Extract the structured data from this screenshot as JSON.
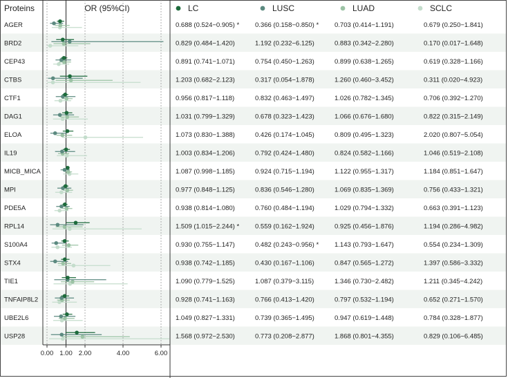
{
  "chart_data": {
    "type": "forest",
    "headers": {
      "proteins": "Proteins",
      "or_ci": "OR (95%CI)"
    },
    "series": [
      {
        "name": "LC",
        "color": "#1e6b3c"
      },
      {
        "name": "LUSC",
        "color": "#5c8a80"
      },
      {
        "name": "LUAD",
        "color": "#9cc3a5"
      },
      {
        "name": "SCLC",
        "color": "#c4ddcc"
      }
    ],
    "xaxis": {
      "ticks": [
        0,
        1,
        2,
        4,
        6
      ],
      "tick_labels": [
        "0.00",
        "1.00",
        "2.00",
        "4.00",
        "6.00"
      ],
      "range": [
        0,
        6.3
      ]
    },
    "rows": [
      {
        "protein": "AGER",
        "values": [
          [
            0.688,
            0.524,
            0.905
          ],
          [
            0.366,
            0.158,
            0.85
          ],
          [
            0.703,
            0.414,
            1.191
          ],
          [
            0.679,
            0.25,
            1.841
          ]
        ],
        "text": [
          "0.688 (0.524−0.905)",
          "0.366 (0.158−0.850)",
          "0.703 (0.414−1.191)",
          "0.679 (0.250−1.841)"
        ],
        "sig": [
          "*",
          "*",
          "",
          ""
        ]
      },
      {
        "protein": "BRD2",
        "values": [
          [
            0.829,
            0.484,
            1.42
          ],
          [
            1.192,
            0.232,
            6.125
          ],
          [
            0.883,
            0.342,
            2.28
          ],
          [
            0.17,
            0.017,
            1.648
          ]
        ],
        "text": [
          "0.829 (0.484−1.420)",
          "1.192 (0.232−6.125)",
          "0.883 (0.342−2.280)",
          "0.170 (0.017−1.648)"
        ],
        "sig": [
          "",
          "",
          "",
          ""
        ]
      },
      {
        "protein": "CEP43",
        "values": [
          [
            0.891,
            0.741,
            1.071
          ],
          [
            0.754,
            0.45,
            1.263
          ],
          [
            0.899,
            0.638,
            1.265
          ],
          [
            0.619,
            0.328,
            1.166
          ]
        ],
        "text": [
          "0.891 (0.741−1.071)",
          "0.754 (0.450−1.263)",
          "0.899 (0.638−1.265)",
          "0.619 (0.328−1.166)"
        ],
        "sig": [
          "",
          "",
          "",
          ""
        ]
      },
      {
        "protein": "CTBS",
        "values": [
          [
            1.203,
            0.682,
            2.123
          ],
          [
            0.317,
            0.054,
            1.878
          ],
          [
            1.26,
            0.46,
            3.452
          ],
          [
            0.311,
            0.02,
            4.923
          ]
        ],
        "text": [
          "1.203 (0.682−2.123)",
          "0.317 (0.054−1.878)",
          "1.260 (0.460−3.452)",
          "0.311 (0.020−4.923)"
        ],
        "sig": [
          "",
          "",
          "",
          ""
        ]
      },
      {
        "protein": "CTF1",
        "values": [
          [
            0.956,
            0.817,
            1.118
          ],
          [
            0.832,
            0.463,
            1.497
          ],
          [
            1.026,
            0.782,
            1.345
          ],
          [
            0.706,
            0.392,
            1.27
          ]
        ],
        "text": [
          "0.956 (0.817−1.118)",
          "0.832 (0.463−1.497)",
          "1.026 (0.782−1.345)",
          "0.706 (0.392−1.270)"
        ],
        "sig": [
          "",
          "",
          "",
          ""
        ]
      },
      {
        "protein": "DAG1",
        "values": [
          [
            1.031,
            0.799,
            1.329
          ],
          [
            0.678,
            0.323,
            1.423
          ],
          [
            1.066,
            0.676,
            1.68
          ],
          [
            0.822,
            0.315,
            2.149
          ]
        ],
        "text": [
          "1.031 (0.799−1.329)",
          "0.678 (0.323−1.423)",
          "1.066 (0.676−1.680)",
          "0.822 (0.315−2.149)"
        ],
        "sig": [
          "",
          "",
          "",
          ""
        ]
      },
      {
        "protein": "ELOA",
        "values": [
          [
            1.073,
            0.83,
            1.388
          ],
          [
            0.426,
            0.174,
            1.045
          ],
          [
            0.809,
            0.495,
            1.323
          ],
          [
            2.02,
            0.807,
            5.054
          ]
        ],
        "text": [
          "1.073 (0.830−1.388)",
          "0.426 (0.174−1.045)",
          "0.809 (0.495−1.323)",
          "2.020 (0.807−5.054)"
        ],
        "sig": [
          "",
          "",
          "",
          ""
        ]
      },
      {
        "protein": "IL19",
        "values": [
          [
            1.003,
            0.834,
            1.206
          ],
          [
            0.792,
            0.424,
            1.48
          ],
          [
            0.824,
            0.582,
            1.166
          ],
          [
            1.046,
            0.519,
            2.108
          ]
        ],
        "text": [
          "1.003 (0.834−1.206)",
          "0.792 (0.424−1.480)",
          "0.824 (0.582−1.166)",
          "1.046 (0.519−2.108)"
        ],
        "sig": [
          "",
          "",
          "",
          ""
        ]
      },
      {
        "protein": "MICB_MICA",
        "values": [
          [
            1.087,
            0.998,
            1.185
          ],
          [
            0.924,
            0.715,
            1.194
          ],
          [
            1.122,
            0.955,
            1.317
          ],
          [
            1.184,
            0.851,
            1.647
          ]
        ],
        "text": [
          "1.087 (0.998−1.185)",
          "0.924 (0.715−1.194)",
          "1.122 (0.955−1.317)",
          "1.184 (0.851−1.647)"
        ],
        "sig": [
          "",
          "",
          "",
          ""
        ]
      },
      {
        "protein": "MPI",
        "values": [
          [
            0.977,
            0.848,
            1.125
          ],
          [
            0.836,
            0.546,
            1.28
          ],
          [
            1.069,
            0.835,
            1.369
          ],
          [
            0.756,
            0.433,
            1.321
          ]
        ],
        "text": [
          "0.977 (0.848−1.125)",
          "0.836 (0.546−1.280)",
          "1.069 (0.835−1.369)",
          "0.756 (0.433−1.321)"
        ],
        "sig": [
          "",
          "",
          "",
          ""
        ]
      },
      {
        "protein": "PDE5A",
        "values": [
          [
            0.938,
            0.814,
            1.08
          ],
          [
            0.76,
            0.484,
            1.194
          ],
          [
            1.029,
            0.794,
            1.332
          ],
          [
            0.663,
            0.391,
            1.123
          ]
        ],
        "text": [
          "0.938 (0.814−1.080)",
          "0.760 (0.484−1.194)",
          "1.029 (0.794−1.332)",
          "0.663 (0.391−1.123)"
        ],
        "sig": [
          "",
          "",
          "",
          ""
        ]
      },
      {
        "protein": "RPL14",
        "values": [
          [
            1.509,
            1.015,
            2.244
          ],
          [
            0.559,
            0.162,
            1.924
          ],
          [
            0.925,
            0.456,
            1.876
          ],
          [
            1.194,
            0.286,
            4.982
          ]
        ],
        "text": [
          "1.509 (1.015−2.244)",
          "0.559 (0.162−1.924)",
          "0.925 (0.456−1.876)",
          "1.194 (0.286−4.982)"
        ],
        "sig": [
          "*",
          "",
          "",
          ""
        ]
      },
      {
        "protein": "S100A4",
        "values": [
          [
            0.93,
            0.755,
            1.147
          ],
          [
            0.482,
            0.243,
            0.956
          ],
          [
            1.143,
            0.793,
            1.647
          ],
          [
            0.554,
            0.234,
            1.309
          ]
        ],
        "text": [
          "0.930 (0.755−1.147)",
          "0.482 (0.243−0.956)",
          "1.143 (0.793−1.647)",
          "0.554 (0.234−1.309)"
        ],
        "sig": [
          "",
          "*",
          "",
          ""
        ]
      },
      {
        "protein": "STX4",
        "values": [
          [
            0.938,
            0.742,
            1.185
          ],
          [
            0.43,
            0.167,
            1.106
          ],
          [
            0.847,
            0.565,
            1.272
          ],
          [
            1.397,
            0.586,
            3.332
          ]
        ],
        "text": [
          "0.938 (0.742−1.185)",
          "0.430 (0.167−1.106)",
          "0.847 (0.565−1.272)",
          "1.397 (0.586−3.332)"
        ],
        "sig": [
          "",
          "",
          "",
          ""
        ]
      },
      {
        "protein": "TIE1",
        "values": [
          [
            1.09,
            0.779,
            1.525
          ],
          [
            1.087,
            0.379,
            3.115
          ],
          [
            1.346,
            0.73,
            2.482
          ],
          [
            1.211,
            0.345,
            4.242
          ]
        ],
        "text": [
          "1.090 (0.779−1.525)",
          "1.087 (0.379−3.115)",
          "1.346 (0.730−2.482)",
          "1.211 (0.345−4.242)"
        ],
        "sig": [
          "",
          "",
          "",
          ""
        ]
      },
      {
        "protein": "TNFAIP8L2",
        "values": [
          [
            0.928,
            0.741,
            1.163
          ],
          [
            0.766,
            0.413,
            1.42
          ],
          [
            0.797,
            0.532,
            1.194
          ],
          [
            0.652,
            0.271,
            1.57
          ]
        ],
        "text": [
          "0.928 (0.741−1.163)",
          "0.766 (0.413−1.420)",
          "0.797 (0.532−1.194)",
          "0.652 (0.271−1.570)"
        ],
        "sig": [
          "",
          "",
          "",
          ""
        ]
      },
      {
        "protein": "UBE2L6",
        "values": [
          [
            1.049,
            0.827,
            1.331
          ],
          [
            0.739,
            0.365,
            1.495
          ],
          [
            0.947,
            0.619,
            1.448
          ],
          [
            0.784,
            0.328,
            1.877
          ]
        ],
        "text": [
          "1.049 (0.827−1.331)",
          "0.739 (0.365−1.495)",
          "0.947 (0.619−1.448)",
          "0.784 (0.328−1.877)"
        ],
        "sig": [
          "",
          "",
          "",
          ""
        ]
      },
      {
        "protein": "USP28",
        "values": [
          [
            1.568,
            0.972,
            2.53
          ],
          [
            0.773,
            0.208,
            2.877
          ],
          [
            1.868,
            0.801,
            4.355
          ],
          [
            0.829,
            0.106,
            6.485
          ]
        ],
        "text": [
          "1.568 (0.972−2.530)",
          "0.773 (0.208−2.877)",
          "1.868 (0.801−4.355)",
          "0.829 (0.106−6.485)"
        ],
        "sig": [
          "",
          "",
          "",
          ""
        ]
      }
    ],
    "stripe_color": "#f0f4f1"
  }
}
